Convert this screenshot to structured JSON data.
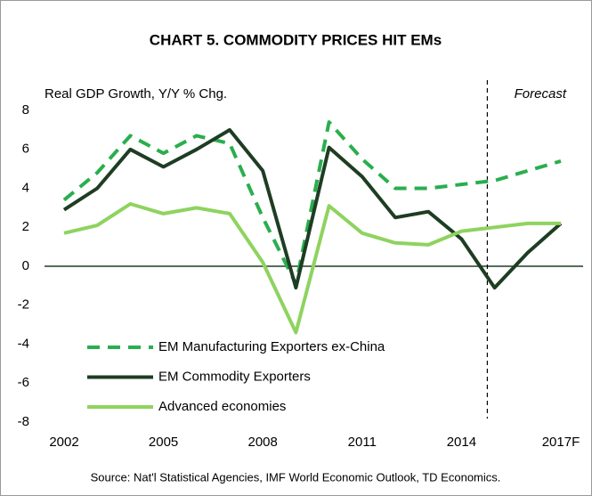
{
  "chart_data": {
    "type": "line",
    "title": "CHART 5. COMMODITY PRICES HIT EMs",
    "y_label": "Real GDP Growth, Y/Y % Chg.",
    "annotation": "Forecast",
    "source": "Source:  Nat'l Statistical Agencies, IMF World Economic Outlook, TD Economics.",
    "categories": [
      "2002",
      null,
      null,
      "2005",
      null,
      null,
      "2008",
      null,
      null,
      "2011",
      null,
      null,
      "2014",
      null,
      null,
      "2017F"
    ],
    "series": [
      {
        "name": "EM Manufacturing Exporters ex-China",
        "color": "#2aae4e",
        "dashed": true,
        "values": [
          3.4,
          4.8,
          6.7,
          5.8,
          6.7,
          6.3,
          2.5,
          -0.9,
          7.4,
          5.5,
          4.0,
          4.0,
          4.2,
          4.4,
          4.9,
          5.4
        ]
      },
      {
        "name": "EM Commodity Exporters",
        "color": "#1e3d23",
        "dashed": false,
        "values": [
          2.9,
          4.0,
          6.0,
          5.1,
          6.0,
          7.0,
          4.9,
          -1.1,
          6.1,
          4.6,
          2.5,
          2.8,
          1.4,
          -1.1,
          0.7,
          2.2
        ]
      },
      {
        "name": "Advanced economies",
        "color": "#8ed35f",
        "dashed": false,
        "values": [
          1.7,
          2.1,
          3.2,
          2.7,
          3.0,
          2.7,
          0.2,
          -3.4,
          3.1,
          1.7,
          1.2,
          1.1,
          1.8,
          2.0,
          2.2,
          2.2
        ]
      }
    ],
    "ylim": [
      -8,
      8
    ],
    "yticks": [
      -8,
      -6,
      -4,
      -2,
      0,
      2,
      4,
      6,
      8
    ]
  }
}
